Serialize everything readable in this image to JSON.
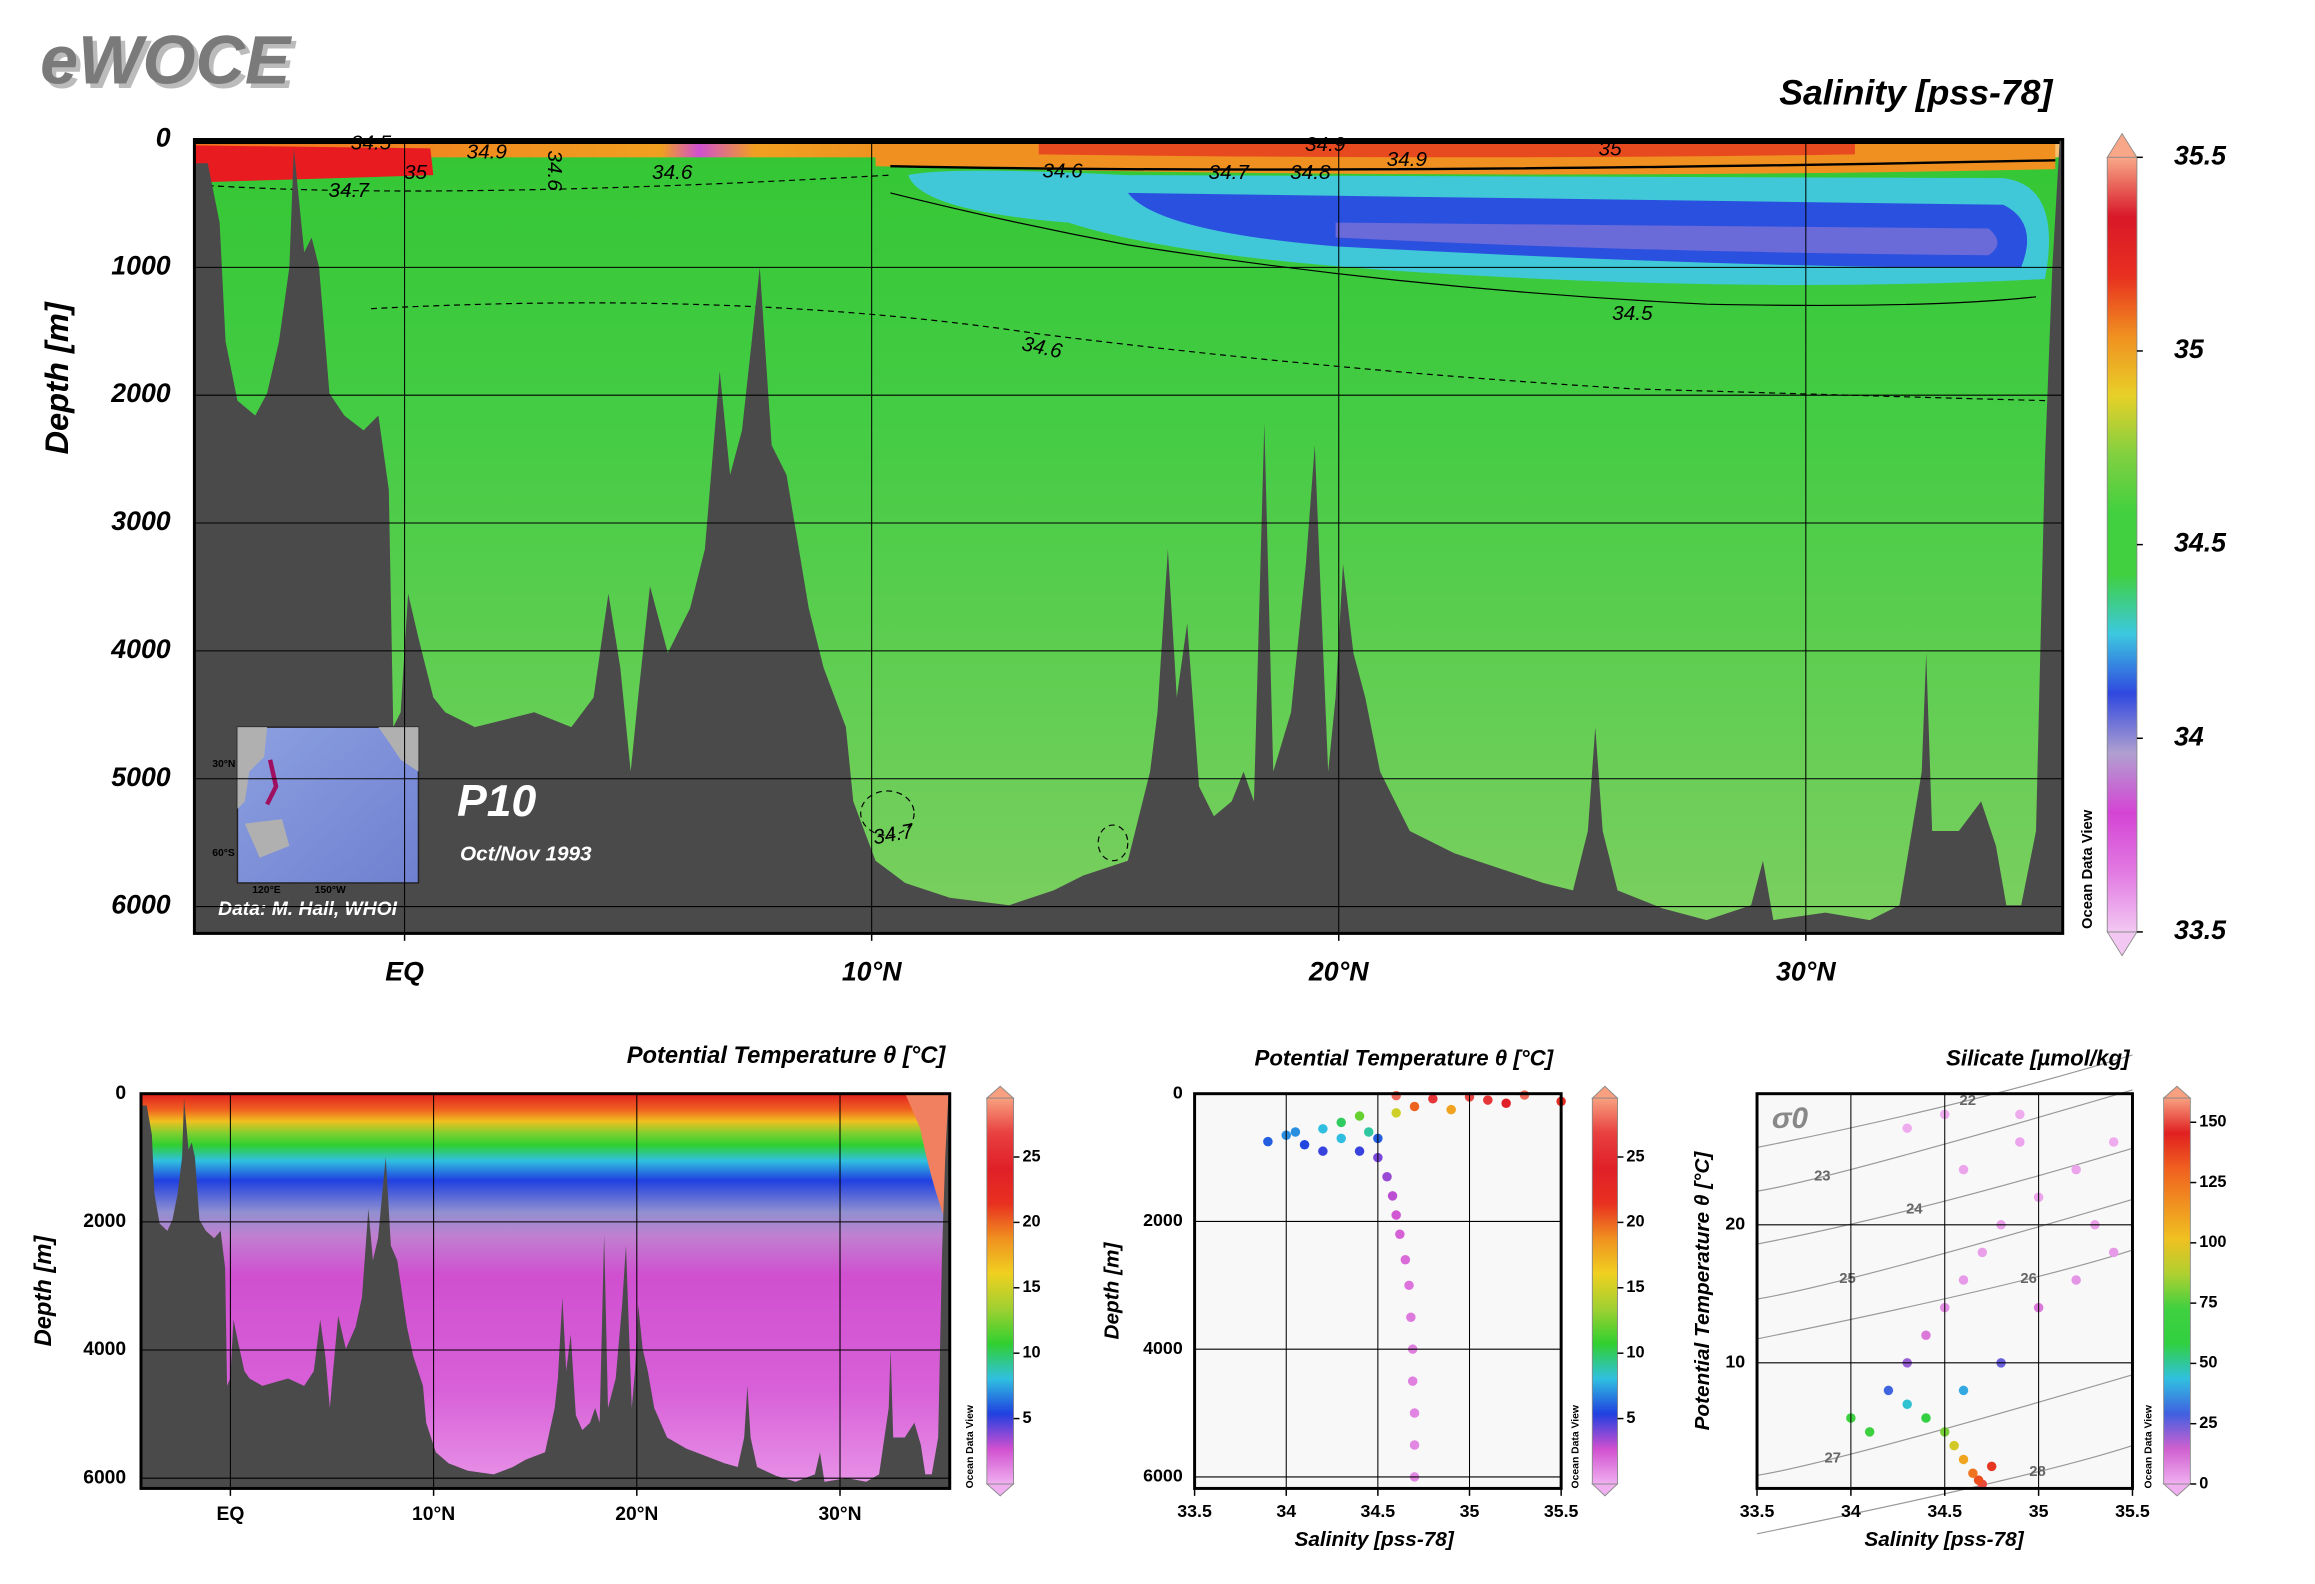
{
  "logo": "eWOCE",
  "chart_data": [
    {
      "type": "section",
      "title": "Salinity [pss-78]",
      "ylabel": "Depth [m]",
      "xlim": [
        -4.5,
        35.5
      ],
      "ylim": [
        0,
        6210
      ],
      "y_inverted": true,
      "grid": true,
      "xticks": [
        {
          "value": 0,
          "label": "EQ"
        },
        {
          "value": 10,
          "label": "10°N"
        },
        {
          "value": 20,
          "label": "20°N"
        },
        {
          "value": 30,
          "label": "30°N"
        }
      ],
      "yticks": [
        0,
        1000,
        2000,
        3000,
        4000,
        5000,
        6000
      ],
      "clim": [
        33.5,
        35.5
      ],
      "cticks": [
        33.5,
        34,
        34.5,
        35,
        35.5
      ],
      "colormap": [
        "#f2c8f2",
        "#e27ae2",
        "#d444d4",
        "#b0a0d0",
        "#3048e0",
        "#3cc8e0",
        "#40d040",
        "#40d040",
        "#80d040",
        "#e8d028",
        "#f09020",
        "#e83020",
        "#d81828",
        "#f8a888"
      ],
      "contour_labels": [
        34.5,
        34.9,
        34.6,
        34.6,
        35,
        34.7,
        34.6,
        34.7,
        34.8,
        34.9,
        35,
        34.9,
        34.5,
        34.6,
        34.7
      ],
      "watermark": "Ocean Data View",
      "cruise": "P10",
      "date": "Oct/Nov 1993",
      "credit": "Data: M. Hall, WHOI",
      "map_labels": [
        "30°N",
        "60°S",
        "120°E",
        "150°W"
      ]
    },
    {
      "type": "section",
      "title": "Potential Temperature θ [°C]",
      "ylabel": "Depth [m]",
      "xlim": [
        -4.4,
        35.4
      ],
      "ylim": [
        0,
        6160
      ],
      "y_inverted": true,
      "grid": true,
      "xticks": [
        {
          "value": 0,
          "label": "EQ"
        },
        {
          "value": 10,
          "label": "10°N"
        },
        {
          "value": 20,
          "label": "20°N"
        },
        {
          "value": 30,
          "label": "30°N"
        }
      ],
      "yticks": [
        0,
        2000,
        4000,
        6000
      ],
      "clim": [
        0,
        29.5
      ],
      "cticks": [
        5,
        10,
        15,
        20,
        25
      ],
      "colormap": [
        "#f0b0f0",
        "#d050d0",
        "#2040e0",
        "#30c0e0",
        "#30d030",
        "#a0d030",
        "#f0d020",
        "#f09020",
        "#e83020",
        "#e02028",
        "#e84040",
        "#f8a080"
      ],
      "watermark": "Ocean Data View"
    },
    {
      "type": "scatter",
      "title": "Potential Temperature θ [°C]",
      "xlabel": "Salinity [pss-78]",
      "ylabel": "Depth [m]",
      "xlim": [
        33.5,
        35.5
      ],
      "ylim": [
        0,
        6180
      ],
      "y_inverted": true,
      "grid": true,
      "xticks": [
        33.5,
        34,
        34.5,
        35,
        35.5
      ],
      "yticks": [
        0,
        2000,
        4000,
        6000
      ],
      "x": [
        35.3,
        35.0,
        34.8,
        35.5,
        34.6,
        35.2,
        34.9,
        34.6,
        34.4,
        34.3,
        34.2,
        34.0,
        33.9,
        34.1,
        34.3,
        34.4,
        34.5,
        34.55,
        34.58,
        34.6,
        34.62,
        34.65,
        34.67,
        34.68,
        34.69,
        34.69,
        34.7,
        34.7,
        34.7,
        34.5,
        34.45,
        34.7,
        35.1,
        34.2,
        34.05
      ],
      "y": [
        20,
        50,
        80,
        120,
        30,
        150,
        250,
        300,
        350,
        450,
        550,
        650,
        750,
        800,
        700,
        900,
        1000,
        1300,
        1600,
        1900,
        2200,
        2600,
        3000,
        3500,
        4000,
        4500,
        5000,
        5500,
        6000,
        700,
        600,
        200,
        100,
        900,
        600
      ],
      "c": [
        28,
        27,
        26,
        22,
        28,
        24,
        18,
        15,
        12,
        10,
        8,
        7,
        6,
        5.5,
        8,
        5,
        4,
        3.5,
        3,
        2.5,
        2.2,
        1.9,
        1.7,
        1.5,
        1.4,
        1.3,
        1.2,
        1.15,
        1.1,
        6,
        9,
        20,
        26,
        5,
        7
      ],
      "clim": [
        0,
        29.5
      ],
      "cticks": [
        5,
        10,
        15,
        20,
        25
      ],
      "colormap": [
        "#f0b0f0",
        "#d050d0",
        "#2040e0",
        "#30c0e0",
        "#30d030",
        "#a0d030",
        "#f0d020",
        "#f09020",
        "#e83020",
        "#e02028",
        "#e84040",
        "#f8a080"
      ],
      "watermark": "Ocean Data View"
    },
    {
      "type": "scatter",
      "title": "Silicate [µmol/kg]",
      "xlabel": "Salinity [pss-78]",
      "ylabel": "Potential Temperature θ [°C]",
      "xlim": [
        33.5,
        35.5
      ],
      "ylim": [
        0.9,
        29.5
      ],
      "grid": true,
      "xticks": [
        33.5,
        34,
        34.5,
        35,
        35.5
      ],
      "yticks": [
        10,
        20
      ],
      "x": [
        34.7,
        34.68,
        34.65,
        34.6,
        34.55,
        34.5,
        34.4,
        34.3,
        34.2,
        34.3,
        34.4,
        34.5,
        34.6,
        34.7,
        34.8,
        35.0,
        35.2,
        34.9,
        34.5,
        35.3,
        35.4,
        35.0,
        34.8,
        34.6,
        34.1,
        34.6,
        35.4,
        34.3,
        34.9,
        34.0,
        35.2,
        34.75
      ],
      "y": [
        1.2,
        1.5,
        2,
        3,
        4,
        5,
        6,
        7,
        8,
        10,
        12,
        14,
        16,
        18,
        20,
        22,
        24,
        26,
        28,
        20,
        18,
        14,
        10,
        8,
        5,
        24,
        26,
        27,
        28,
        6,
        16,
        2.5
      ],
      "c": [
        150,
        135,
        125,
        110,
        95,
        80,
        60,
        45,
        30,
        20,
        10,
        6,
        4,
        3,
        3,
        2,
        2,
        2,
        1,
        3,
        4,
        10,
        25,
        40,
        70,
        2,
        1,
        1,
        1,
        70,
        5,
        140
      ],
      "clim": [
        0,
        160
      ],
      "cticks": [
        0,
        25,
        50,
        75,
        100,
        125,
        150
      ],
      "colormap": [
        "#f0b0f0",
        "#d060d0",
        "#4060e0",
        "#30c0e0",
        "#30d040",
        "#40d040",
        "#b0d030",
        "#f0c020",
        "#f09020",
        "#f06020",
        "#e02020",
        "#f8a080"
      ],
      "isopycnal_label": "σ0",
      "isopycnals": [
        22,
        23,
        24,
        25,
        26,
        27,
        28
      ],
      "watermark": "Ocean Data View"
    }
  ]
}
